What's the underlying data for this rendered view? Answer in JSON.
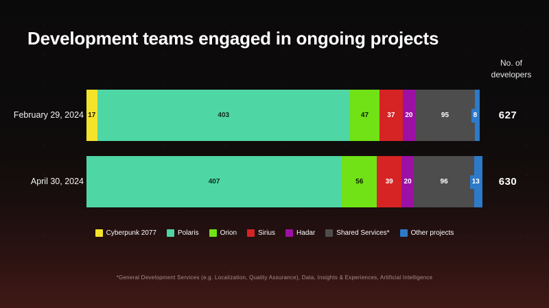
{
  "title": "Development teams engaged in ongoing projects",
  "right_axis_label": "No. of developers",
  "footnote": "*General Development Services (e.g. Localization, Quality Assurance), Data, Insights & Experiences, Artificial Intelligence",
  "colors": {
    "background_top": "#0b0a0a",
    "background_bottom": "#401916",
    "title_text": "#ffffff",
    "row_label_text": "#f4f4f4",
    "total_text": "#ffffff",
    "footnote_text": "#a68f8d"
  },
  "chart_data": {
    "type": "bar",
    "orientation": "horizontal",
    "stacked": true,
    "title": "Development teams engaged in ongoing projects",
    "xlabel": "",
    "ylabel": "No. of developers",
    "legend_position": "bottom",
    "grid": false,
    "scale_max": 630,
    "categories": [
      "February 29, 2024",
      "April 30, 2024"
    ],
    "totals": [
      627,
      630
    ],
    "series": [
      {
        "name": "Cyberpunk 2077",
        "color": "#f4e32b",
        "label_color": "#161302",
        "values": [
          17,
          0
        ]
      },
      {
        "name": "Polaris",
        "color": "#4ed7a5",
        "label_color": "#122a21",
        "values": [
          403,
          407
        ]
      },
      {
        "name": "Orion",
        "color": "#70e215",
        "label_color": "#101c02",
        "values": [
          47,
          56
        ]
      },
      {
        "name": "Sirius",
        "color": "#d62424",
        "label_color": "#ffffff",
        "values": [
          37,
          39
        ]
      },
      {
        "name": "Hadar",
        "color": "#9c10a4",
        "label_color": "#ffffff",
        "values": [
          20,
          20
        ]
      },
      {
        "name": "Shared Services*",
        "color": "#4d4d4d",
        "label_color": "#ffffff",
        "values": [
          95,
          96
        ]
      },
      {
        "name": "Other projects",
        "color": "#2d7ac9",
        "label_color": "#ffffff",
        "values": [
          8,
          13
        ]
      }
    ]
  }
}
